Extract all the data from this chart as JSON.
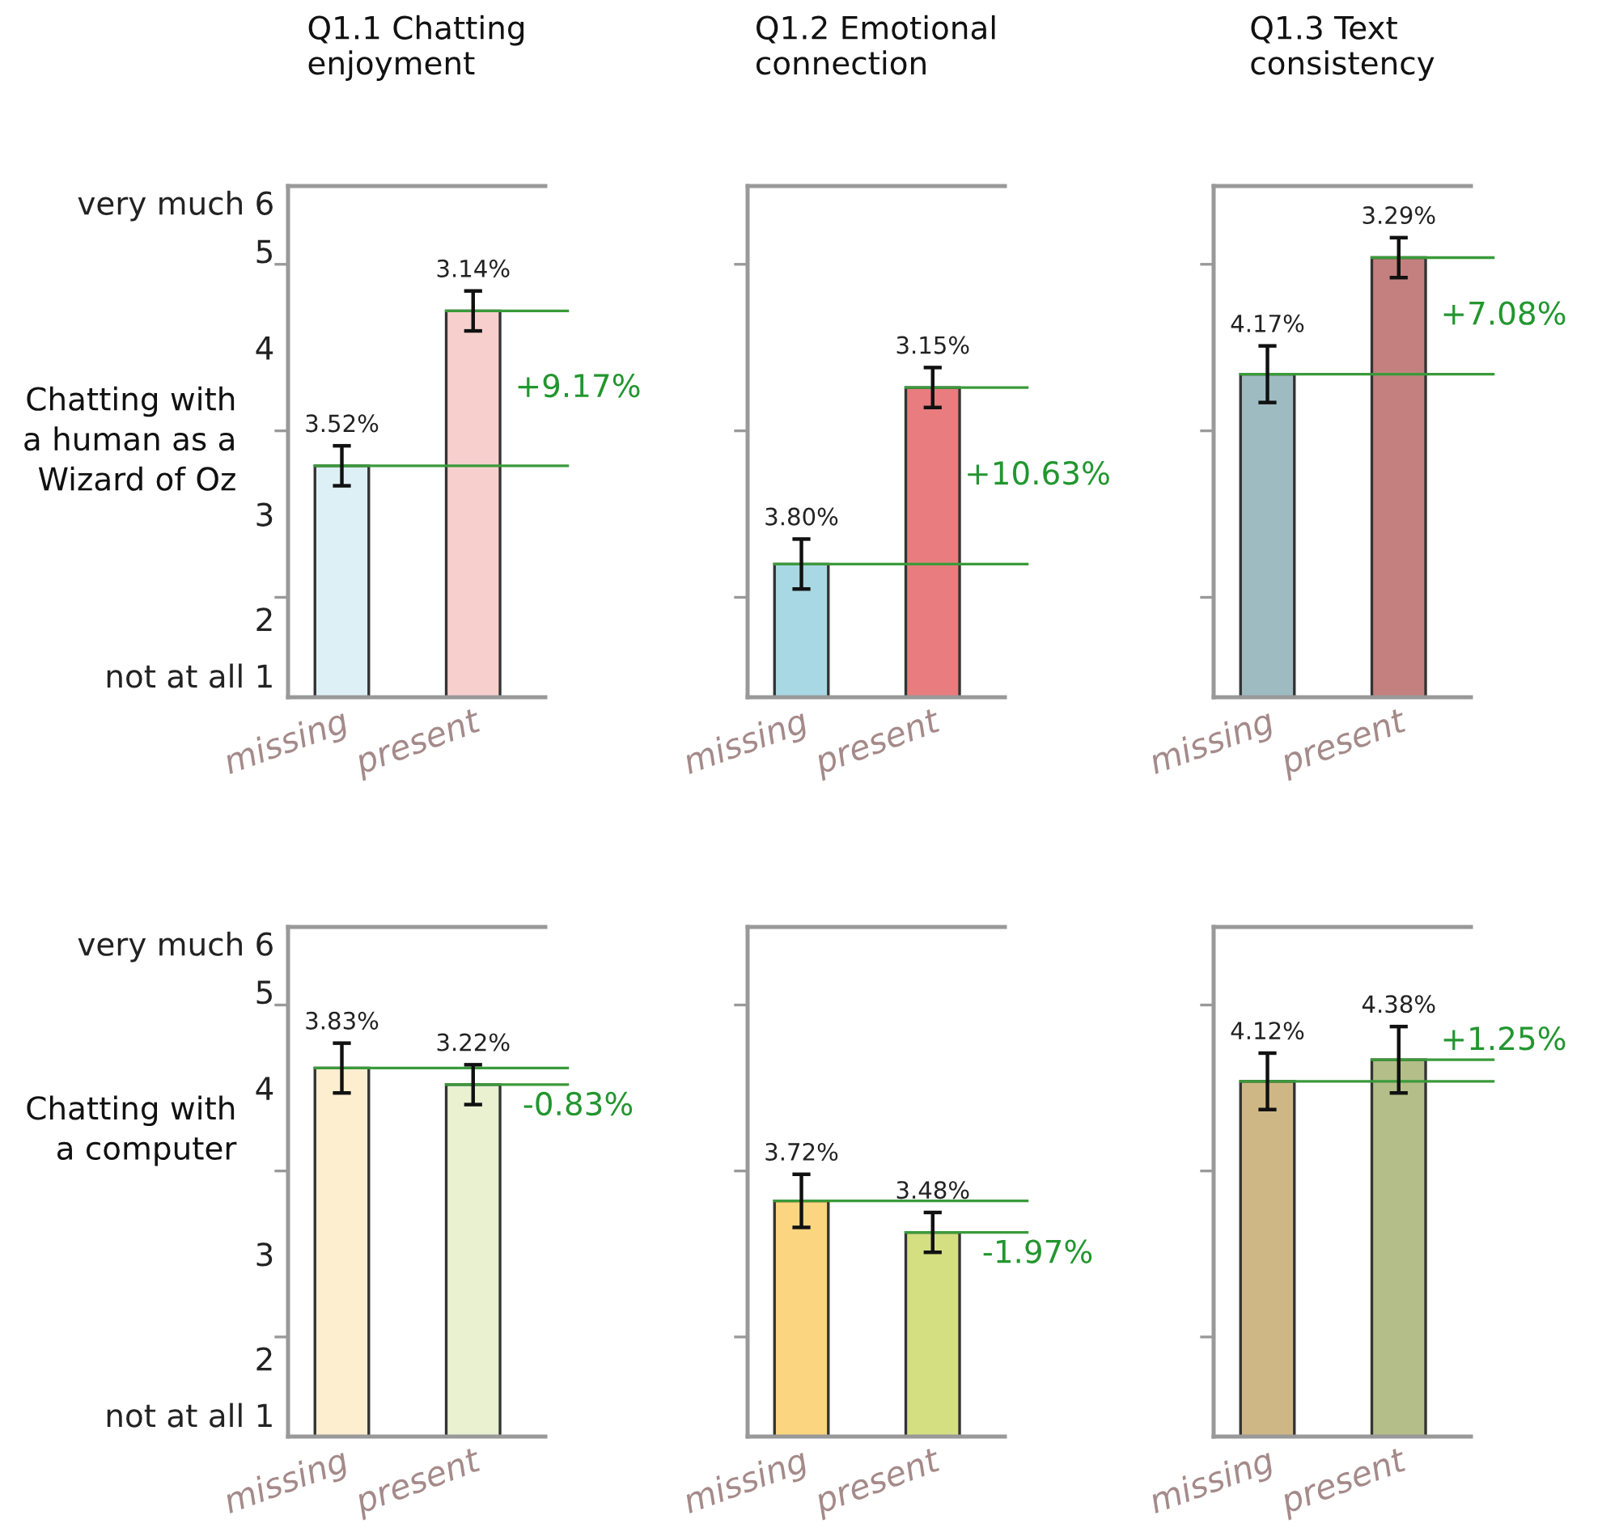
{
  "chart_data": [
    {
      "type": "bar",
      "title": "Q1.1 Chatting\nenjoyment",
      "ylabel": "Chatting with\na human as a\nWizard of Oz",
      "categories": [
        "missing",
        "present"
      ],
      "values": [
        3.29,
        4.22
      ],
      "colors": [
        "#ddf0f5",
        "#f7d0ce"
      ],
      "errors": [
        0.12,
        0.12
      ],
      "ylim": [
        1.9,
        4.97
      ],
      "yticks": [
        {
          "value": 4.87,
          "label": "very much 6"
        },
        {
          "value": 4.58,
          "label": "5"
        },
        4,
        3,
        {
          "value": 2.37,
          "label": "2"
        },
        {
          "value": 2.03,
          "label": "not at all 1"
        },
        {
          "value": 2.5,
          "label": null
        },
        {
          "value": 3.5,
          "label": null
        },
        {
          "value": 4.5,
          "label": null
        }
      ],
      "ref_lines": [
        {
          "axis": "y",
          "value": 3.29,
          "color": "#3a9a3a"
        },
        {
          "axis": "y",
          "value": 4.22,
          "color": "#3a9a3a"
        }
      ],
      "annotations": [
        {
          "text": "3.52%",
          "x": "missing",
          "y": 3.41
        },
        {
          "text": "3.14%",
          "x": "present",
          "y": 4.34
        },
        "+9.17%"
      ],
      "grid": false,
      "legend": false
    },
    {
      "type": "bar",
      "title": "Q1.2 Emotional\nconnection",
      "categories": [
        "missing",
        "present"
      ],
      "values": [
        2.7,
        3.76
      ],
      "colors": [
        "#a8d8e4",
        "#e97c7e"
      ],
      "errors": [
        0.15,
        0.12
      ],
      "ylim": [
        1.9,
        4.97
      ],
      "yticks": [
        {
          "value": 2.5,
          "label": null
        },
        {
          "value": 3.5,
          "label": null
        },
        {
          "value": 4.5,
          "label": null
        }
      ],
      "tick_labels": "x",
      "ref_lines": [
        {
          "axis": "y",
          "value": 2.7,
          "color": "#3a9a3a"
        },
        {
          "axis": "y",
          "value": 3.76,
          "color": "#3a9a3a"
        }
      ],
      "annotations": [
        {
          "text": "3.80%",
          "x": "missing",
          "y": 2.85
        },
        {
          "text": "3.15%",
          "x": "present",
          "y": 3.88
        },
        "+10.63%"
      ],
      "grid": false,
      "legend": false
    },
    {
      "type": "bar",
      "title": "Q1.3 Text\nconsistency",
      "categories": [
        "missing",
        "present"
      ],
      "values": [
        3.84,
        4.54
      ],
      "colors": [
        "#9ebbc2",
        "#c4807e"
      ],
      "errors": [
        0.17,
        0.12
      ],
      "ylim": [
        1.9,
        4.97
      ],
      "yticks": [
        {
          "value": 2.5,
          "label": null
        },
        {
          "value": 3.5,
          "label": null
        },
        {
          "value": 4.5,
          "label": null
        }
      ],
      "tick_labels": "x",
      "ref_lines": [
        {
          "axis": "y",
          "value": 3.84,
          "color": "#3a9a3a"
        },
        {
          "axis": "y",
          "value": 4.54,
          "color": "#3a9a3a"
        }
      ],
      "annotations": [
        {
          "text": "4.17%",
          "x": "missing",
          "y": 4.01
        },
        {
          "text": "3.29%",
          "x": "present",
          "y": 4.66
        },
        "+7.08%"
      ],
      "grid": false,
      "legend": false
    },
    {
      "type": "bar",
      "ylabel": "Chatting with\na computer",
      "categories": [
        "missing",
        "present"
      ],
      "values": [
        4.12,
        4.02
      ],
      "colors": [
        "#fdeecf",
        "#e9f1d1"
      ],
      "errors": [
        0.15,
        0.12
      ],
      "ylim": [
        1.9,
        4.97
      ],
      "yticks": [
        {
          "value": 4.87,
          "label": "very much 6"
        },
        {
          "value": 4.58,
          "label": "5"
        },
        4,
        3,
        {
          "value": 2.37,
          "label": "2"
        },
        {
          "value": 2.03,
          "label": "not at all 1"
        },
        {
          "value": 2.5,
          "label": null
        },
        {
          "value": 3.5,
          "label": null
        },
        {
          "value": 4.5,
          "label": null
        }
      ],
      "ref_lines": [
        {
          "axis": "y",
          "value": 4.12,
          "color": "#3a9a3a"
        },
        {
          "axis": "y",
          "value": 4.02,
          "color": "#3a9a3a"
        }
      ],
      "annotations": [
        {
          "text": "3.83%",
          "x": "missing",
          "y": 4.27
        },
        {
          "text": "3.22%",
          "x": "present",
          "y": 4.14
        },
        "-0.83%"
      ],
      "grid": false,
      "legend": false
    },
    {
      "type": "bar",
      "categories": [
        "missing",
        "present"
      ],
      "values": [
        3.32,
        3.13
      ],
      "colors": [
        "#fbd57f",
        "#d4df82"
      ],
      "errors": [
        0.16,
        0.12
      ],
      "ylim": [
        1.9,
        4.97
      ],
      "yticks": [
        {
          "value": 2.5,
          "label": null
        },
        {
          "value": 3.5,
          "label": null
        },
        {
          "value": 4.5,
          "label": null
        }
      ],
      "tick_labels": "x",
      "ref_lines": [
        {
          "axis": "y",
          "value": 3.32,
          "color": "#3a9a3a"
        },
        {
          "axis": "y",
          "value": 3.13,
          "color": "#3a9a3a"
        }
      ],
      "annotations": [
        {
          "text": "3.72%",
          "x": "missing",
          "y": 3.48
        },
        {
          "text": "3.48%",
          "x": "present",
          "y": 3.25
        },
        "-1.97%"
      ],
      "grid": false,
      "legend": false
    },
    {
      "type": "bar",
      "categories": [
        "missing",
        "present"
      ],
      "values": [
        4.04,
        4.17
      ],
      "colors": [
        "#cfb785",
        "#b4be88"
      ],
      "errors": [
        0.17,
        0.2
      ],
      "ylim": [
        1.9,
        4.97
      ],
      "yticks": [
        {
          "value": 2.5,
          "label": null
        },
        {
          "value": 3.5,
          "label": null
        },
        {
          "value": 4.5,
          "label": null
        }
      ],
      "tick_labels": "x",
      "ref_lines": [
        {
          "axis": "y",
          "value": 4.04,
          "color": "#3a9a3a"
        },
        {
          "axis": "y",
          "value": 4.17,
          "color": "#3a9a3a"
        }
      ],
      "annotations": [
        {
          "text": "4.12%",
          "x": "missing",
          "y": 4.21
        },
        {
          "text": "4.38%",
          "x": "present",
          "y": 4.37
        },
        "+1.25%"
      ],
      "grid": false,
      "legend": false
    }
  ]
}
